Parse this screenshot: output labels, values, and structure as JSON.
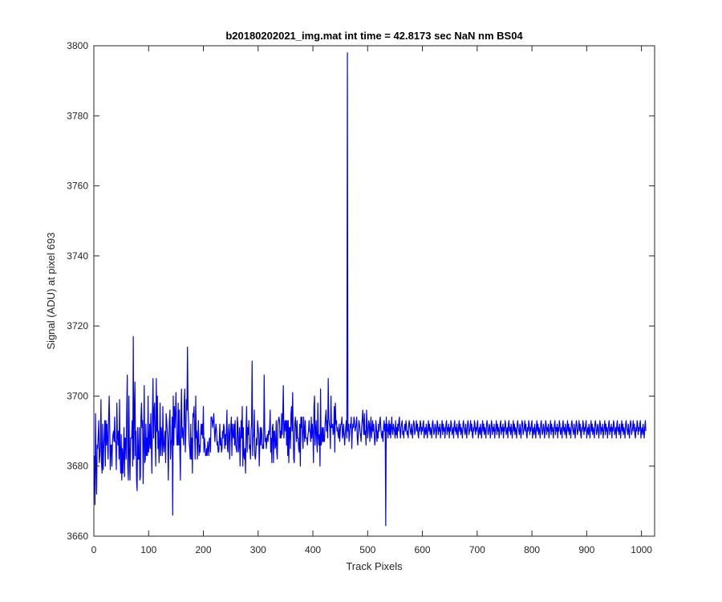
{
  "chart_data": {
    "type": "line",
    "title": "b20180202021_img.mat int time = 42.8173 sec  NaN nm BS04",
    "xlabel": "Track Pixels",
    "ylabel": "Signal (ADU) at pixel 693",
    "xlim": [
      0,
      1024
    ],
    "ylim": [
      3660,
      3800
    ],
    "xticks": [
      0,
      100,
      200,
      300,
      400,
      500,
      600,
      700,
      800,
      900,
      1000
    ],
    "yticks": [
      3660,
      3680,
      3700,
      3720,
      3740,
      3760,
      3780,
      3800
    ],
    "grid": false,
    "legend": "none",
    "series": [
      {
        "color": "#0000ff",
        "x_start": 1,
        "x_step": 1,
        "y": [
          3683,
          3669,
          3695,
          3680,
          3672,
          3686,
          3685,
          3689,
          3693,
          3681,
          3683,
          3686,
          3699,
          3681,
          3678,
          3692,
          3679,
          3685,
          3689,
          3693,
          3680,
          3693,
          3686,
          3692,
          3687,
          3682,
          3694,
          3700,
          3691,
          3679,
          3686,
          3686,
          3680,
          3687,
          3689,
          3690,
          3687,
          3694,
          3687,
          3687,
          3679,
          3698,
          3689,
          3686,
          3690,
          3682,
          3699,
          3683,
          3678,
          3689,
          3676,
          3685,
          3678,
          3683,
          3691,
          3677,
          3688,
          3688,
          3682,
          3696,
          3706,
          3680,
          3676,
          3700,
          3684,
          3676,
          3688,
          3688,
          3688,
          3693,
          3680,
          3717,
          3682,
          3696,
          3704,
          3683,
          3690,
          3676,
          3673,
          3691,
          3682,
          3682,
          3691,
          3676,
          3677,
          3694,
          3698,
          3691,
          3693,
          3675,
          3686,
          3703,
          3681,
          3682,
          3692,
          3683,
          3688,
          3683,
          3700,
          3684,
          3686,
          3692,
          3685,
          3695,
          3686,
          3678,
          3695,
          3705,
          3688,
          3696,
          3698,
          3688,
          3680,
          3705,
          3690,
          3700,
          3685,
          3690,
          3681,
          3686,
          3698,
          3683,
          3691,
          3689,
          3683,
          3697,
          3686,
          3684,
          3688,
          3690,
          3681,
          3695,
          3693,
          3690,
          3687,
          3676,
          3688,
          3693,
          3696,
          3682,
          3686,
          3688,
          3694,
          3666,
          3700,
          3686,
          3697,
          3691,
          3695,
          3701,
          3690,
          3686,
          3686,
          3698,
          3686,
          3696,
          3685,
          3676,
          3693,
          3702,
          3688,
          3691,
          3689,
          3686,
          3698,
          3702,
          3684,
          3689,
          3699,
          3696,
          3714,
          3696,
          3693,
          3687,
          3685,
          3682,
          3692,
          3682,
          3688,
          3678,
          3695,
          3694,
          3697,
          3690,
          3682,
          3700,
          3688,
          3690,
          3682,
          3688,
          3693,
          3683,
          3686,
          3684,
          3689,
          3692,
          3689,
          3692,
          3688,
          3697,
          3684,
          3688,
          3686,
          3683,
          3683,
          3685,
          3683,
          3687,
          3685,
          3683,
          3688,
          3688,
          3684,
          3694,
          3694,
          3693,
          3691,
          3693,
          3695,
          3691,
          3687,
          3690,
          3692,
          3690,
          3686,
          3687,
          3684,
          3684,
          3687,
          3692,
          3686,
          3688,
          3684,
          3685,
          3690,
          3688,
          3692,
          3691,
          3685,
          3689,
          3686,
          3690,
          3696,
          3685,
          3684,
          3690,
          3692,
          3682,
          3689,
          3691,
          3694,
          3683,
          3692,
          3689,
          3688,
          3692,
          3686,
          3693,
          3686,
          3685,
          3684,
          3694,
          3692,
          3684,
          3686,
          3691,
          3680,
          3688,
          3693,
          3688,
          3697,
          3680,
          3691,
          3683,
          3682,
          3685,
          3678,
          3691,
          3697,
          3684,
          3691,
          3689,
          3693,
          3685,
          3686,
          3682,
          3690,
          3692,
          3710,
          3683,
          3688,
          3689,
          3696,
          3683,
          3682,
          3684,
          3688,
          3686,
          3693,
          3691,
          3689,
          3680,
          3686,
          3691,
          3686,
          3691,
          3689,
          3685,
          3686,
          3685,
          3706,
          3691,
          3687,
          3688,
          3685,
          3688,
          3689,
          3687,
          3690,
          3689,
          3691,
          3696,
          3684,
          3688,
          3681,
          3691,
          3692,
          3681,
          3690,
          3690,
          3685,
          3686,
          3693,
          3684,
          3682,
          3692,
          3693,
          3694,
          3693,
          3688,
          3690,
          3688,
          3695,
          3689,
          3695,
          3703,
          3688,
          3691,
          3693,
          3690,
          3693,
          3686,
          3693,
          3683,
          3693,
          3681,
          3691,
          3691,
          3685,
          3695,
          3697,
          3690,
          3701,
          3690,
          3682,
          3681,
          3692,
          3694,
          3691,
          3687,
          3693,
          3688,
          3688,
          3685,
          3684,
          3692,
          3680,
          3694,
          3691,
          3694,
          3688,
          3685,
          3694,
          3691,
          3687,
          3693,
          3688,
          3688,
          3688,
          3686,
          3689,
          3690,
          3693,
          3690,
          3690,
          3687,
          3694,
          3688,
          3692,
          3690,
          3681,
          3697,
          3700,
          3686,
          3690,
          3693,
          3687,
          3684,
          3698,
          3689,
          3686,
          3689,
          3680,
          3702,
          3686,
          3687,
          3691,
          3687,
          3691,
          3687,
          3687,
          3691,
          3694,
          3696,
          3690,
          3693,
          3688,
          3705,
          3694,
          3692,
          3691,
          3685,
          3700,
          3691,
          3691,
          3692,
          3689,
          3690,
          3697,
          3684,
          3698,
          3692,
          3693,
          3690,
          3691,
          3689,
          3688,
          3692,
          3687,
          3690,
          3692,
          3692,
          3694,
          3688,
          3689,
          3692,
          3689,
          3686,
          3689,
          3691,
          3693,
          3688,
          3798,
          3690,
          3692,
          3687,
          3689,
          3692,
          3691,
          3694,
          3685,
          3690,
          3692,
          3691,
          3694,
          3693,
          3690,
          3691,
          3692,
          3694,
          3688,
          3686,
          3690,
          3693,
          3692,
          3690,
          3689,
          3687,
          3691,
          3693,
          3696,
          3692,
          3689,
          3695,
          3689,
          3690,
          3686,
          3696,
          3692,
          3688,
          3690,
          3693,
          3692,
          3687,
          3691,
          3694,
          3688,
          3690,
          3693,
          3690,
          3692,
          3689,
          3686,
          3688,
          3693,
          3691,
          3687,
          3690,
          3688,
          3692,
          3690,
          3693,
          3694,
          3691,
          3689,
          3688,
          3690,
          3687,
          3691,
          3693,
          3690,
          3692,
          3663,
          3694,
          3690,
          3692,
          3688,
          3690,
          3693,
          3689,
          3692,
          3688,
          3691,
          3694,
          3690,
          3689,
          3692,
          3691,
          3690,
          3688,
          3693,
          3689,
          3691,
          3688,
          3692,
          3690,
          3693,
          3694,
          3690,
          3688,
          3691,
          3692,
          3693,
          3689,
          3690,
          3688,
          3691,
          3692,
          3690,
          3693,
          3691,
          3689,
          3690,
          3688,
          3692,
          3693,
          3691,
          3690,
          3689,
          3692,
          3690,
          3688,
          3691,
          3693,
          3692,
          3689,
          3690,
          3691,
          3693,
          3690,
          3692,
          3689,
          3688,
          3691,
          3690,
          3693,
          3692,
          3689,
          3691,
          3690,
          3692,
          3693,
          3688,
          3690,
          3691,
          3689,
          3692,
          3690,
          3688,
          3691,
          3693,
          3690,
          3692,
          3689,
          3691,
          3690,
          3688,
          3692,
          3693,
          3691,
          3689,
          3690,
          3692,
          3691,
          3688,
          3690,
          3693,
          3692,
          3689,
          3691,
          3690,
          3692,
          3688,
          3690,
          3691,
          3693,
          3689,
          3692,
          3690,
          3691,
          3688,
          3690,
          3692,
          3693,
          3689,
          3691,
          3690,
          3692,
          3688,
          3691,
          3690,
          3693,
          3692,
          3689,
          3690,
          3691,
          3688,
          3692,
          3693,
          3690,
          3691,
          3689,
          3692,
          3690,
          3688,
          3691,
          3693,
          3690,
          3692,
          3689,
          3691,
          3690,
          3688,
          3692,
          3693,
          3691,
          3690,
          3689,
          3692,
          3690,
          3688,
          3691,
          3693,
          3692,
          3689,
          3690,
          3691,
          3693,
          3690,
          3692,
          3689,
          3688,
          3691,
          3690,
          3693,
          3692,
          3689,
          3691,
          3690,
          3692,
          3693,
          3688,
          3690,
          3691,
          3689,
          3692,
          3690,
          3688,
          3691,
          3693,
          3690,
          3692,
          3689,
          3691,
          3690,
          3688,
          3692,
          3693,
          3691,
          3689,
          3690,
          3692,
          3691,
          3688,
          3690,
          3693,
          3692,
          3689,
          3691,
          3690,
          3692,
          3688,
          3690,
          3691,
          3693,
          3689,
          3692,
          3690,
          3691,
          3688,
          3690,
          3692,
          3693,
          3689,
          3691,
          3690,
          3692,
          3688,
          3691,
          3690,
          3693,
          3692,
          3689,
          3690,
          3691,
          3688,
          3692,
          3693,
          3690,
          3691,
          3689,
          3692,
          3690,
          3688,
          3691,
          3693,
          3690,
          3692,
          3689,
          3691,
          3690,
          3688,
          3692,
          3693,
          3691,
          3690,
          3689,
          3692,
          3690,
          3688,
          3691,
          3693,
          3692,
          3689,
          3690,
          3691,
          3693,
          3690,
          3692,
          3689,
          3688,
          3691,
          3690,
          3693,
          3692,
          3689,
          3691,
          3690,
          3692,
          3693,
          3688,
          3690,
          3691,
          3689,
          3692,
          3690,
          3688,
          3691,
          3693,
          3690,
          3692,
          3689,
          3691,
          3690,
          3688,
          3692,
          3693,
          3691,
          3689,
          3690,
          3692,
          3691,
          3688,
          3690,
          3693,
          3692,
          3689,
          3691,
          3690,
          3692,
          3688,
          3690,
          3691,
          3693,
          3689,
          3692,
          3690,
          3691,
          3688,
          3690,
          3692,
          3693,
          3689,
          3691,
          3690,
          3692,
          3688,
          3691,
          3690,
          3693,
          3692,
          3689,
          3690,
          3691,
          3688,
          3692,
          3693,
          3690,
          3691,
          3689,
          3692,
          3690,
          3688,
          3691,
          3693,
          3690,
          3692,
          3689,
          3691,
          3690,
          3688,
          3692,
          3693,
          3691,
          3690,
          3689,
          3692,
          3690,
          3688,
          3691,
          3693,
          3692,
          3689,
          3690,
          3691,
          3693,
          3690,
          3692,
          3689,
          3688,
          3691,
          3690,
          3693,
          3692,
          3689,
          3691,
          3690,
          3692,
          3693,
          3688,
          3690,
          3691,
          3689,
          3692,
          3690,
          3688,
          3691,
          3693,
          3690,
          3692,
          3689,
          3691,
          3690,
          3688,
          3692,
          3693,
          3691,
          3689,
          3690,
          3692,
          3691,
          3688,
          3690,
          3693,
          3692,
          3689,
          3691,
          3690,
          3692,
          3688,
          3690,
          3691,
          3693,
          3689,
          3692,
          3690,
          3691,
          3688,
          3690,
          3692,
          3693,
          3689,
          3691,
          3690,
          3692,
          3688,
          3691,
          3690,
          3693,
          3692,
          3689,
          3690,
          3691,
          3688,
          3692,
          3693,
          3690,
          3691,
          3689,
          3692,
          3690,
          3688,
          3691,
          3693,
          3690,
          3692,
          3689,
          3691,
          3690,
          3688,
          3692,
          3693,
          3691,
          3690,
          3689,
          3692,
          3690,
          3688,
          3691,
          3693,
          3692,
          3689,
          3690,
          3691,
          3693,
          3690,
          3692,
          3689,
          3688,
          3691,
          3690,
          3693,
          3692,
          3689,
          3691,
          3690,
          3692,
          3693,
          3688,
          3690,
          3691,
          3689,
          3692,
          3690,
          3688,
          3691,
          3693,
          3690
        ]
      }
    ]
  }
}
